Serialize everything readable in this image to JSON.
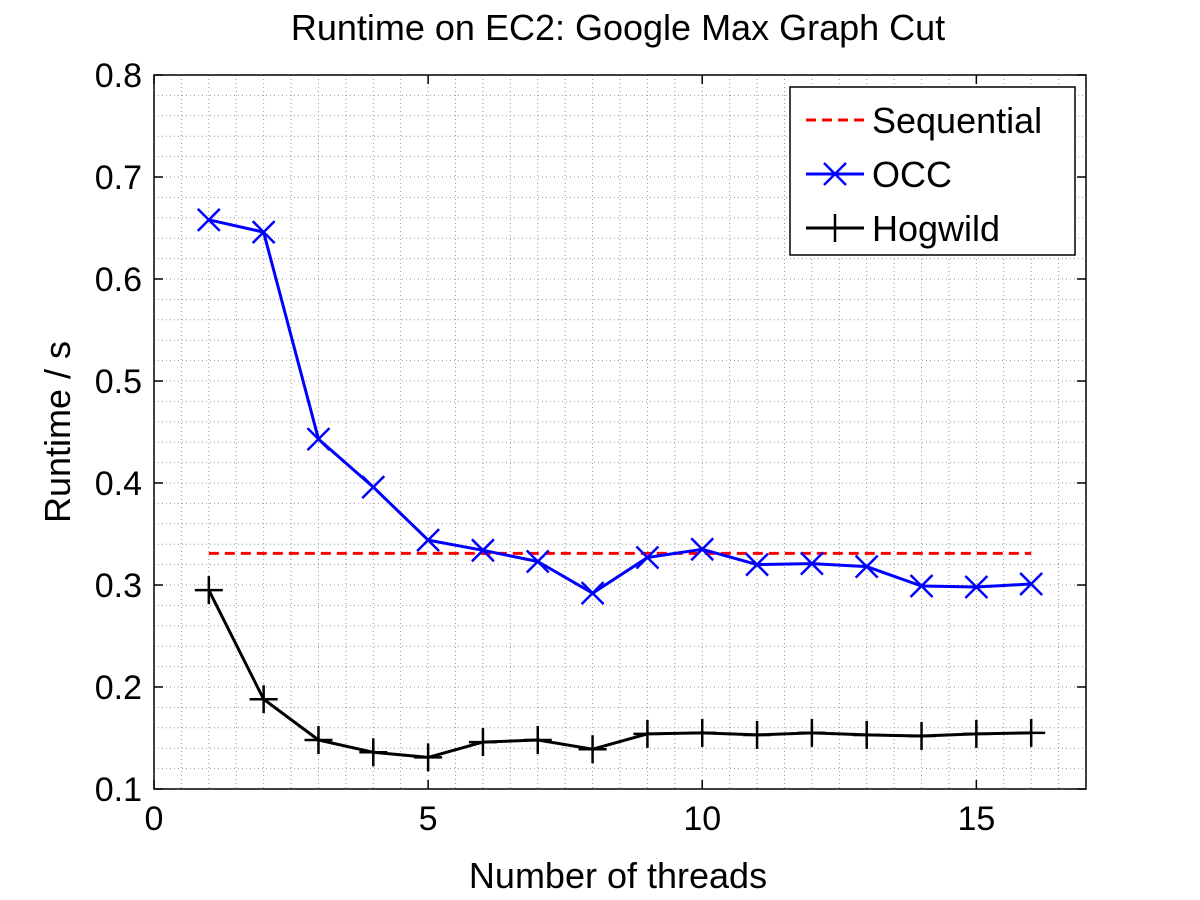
{
  "chart_data": {
    "type": "line",
    "title": "Runtime on EC2: Google Max Graph Cut",
    "xlabel": "Number of threads",
    "ylabel": "Runtime / s",
    "xlim": [
      0,
      17
    ],
    "ylim": [
      0.1,
      0.8
    ],
    "xticks": [
      0,
      5,
      10,
      15
    ],
    "xtick_labels": [
      "0",
      "5",
      "10",
      "15"
    ],
    "yticks": [
      0.1,
      0.2,
      0.3,
      0.4,
      0.5,
      0.6,
      0.7,
      0.8
    ],
    "ytick_labels": [
      "0.1",
      "0.2",
      "0.3",
      "0.4",
      "0.5",
      "0.6",
      "0.7",
      "0.8"
    ],
    "grid": true,
    "minor_grid": true,
    "legend_position": "top-right",
    "series": [
      {
        "name": "Sequential",
        "color": "#ff0000",
        "style": "dashed",
        "marker": "none",
        "x": [
          1,
          16
        ],
        "values": [
          0.331,
          0.331
        ]
      },
      {
        "name": "OCC",
        "color": "#0000ff",
        "style": "solid",
        "marker": "x",
        "x": [
          1,
          2,
          3,
          4,
          5,
          6,
          7,
          8,
          9,
          10,
          11,
          12,
          13,
          14,
          15,
          16
        ],
        "values": [
          0.658,
          0.646,
          0.443,
          0.396,
          0.344,
          0.334,
          0.323,
          0.292,
          0.327,
          0.335,
          0.32,
          0.321,
          0.318,
          0.299,
          0.298,
          0.301
        ]
      },
      {
        "name": "Hogwild",
        "color": "#000000",
        "style": "solid",
        "marker": "+",
        "x": [
          1,
          2,
          3,
          4,
          5,
          6,
          7,
          8,
          9,
          10,
          11,
          12,
          13,
          14,
          15,
          16
        ],
        "values": [
          0.295,
          0.188,
          0.148,
          0.136,
          0.131,
          0.146,
          0.148,
          0.139,
          0.154,
          0.155,
          0.153,
          0.155,
          0.153,
          0.152,
          0.154,
          0.155
        ]
      }
    ]
  }
}
